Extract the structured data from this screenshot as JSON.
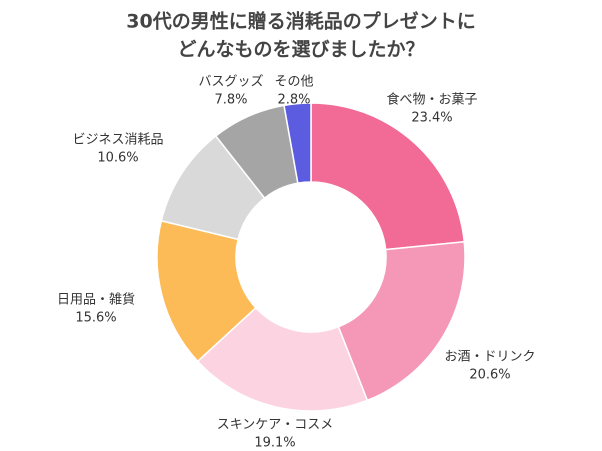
{
  "chart_data": {
    "type": "donut",
    "title": [
      "30代の男性に贈る消耗品のプレゼントに",
      "どんなものを選びましたか？"
    ],
    "categories": [
      "食べ物・お菓子",
      "お酒・ドリンク",
      "スキンケア・コスメ",
      "日用品・雑貨",
      "ビジネス消耗品",
      "バスグッズ",
      "その他"
    ],
    "values": [
      23.4,
      20.6,
      19.1,
      15.6,
      10.6,
      7.8,
      2.8
    ],
    "value_labels": [
      "23.4%",
      "20.6%",
      "19.1%",
      "15.6%",
      "10.6%",
      "7.8%",
      "2.8%"
    ],
    "colors": [
      "#f26a96",
      "#f598b7",
      "#fcd3e0",
      "#fdbb57",
      "#d9d9d9",
      "#a5a5a5",
      "#5c5ce0"
    ]
  }
}
